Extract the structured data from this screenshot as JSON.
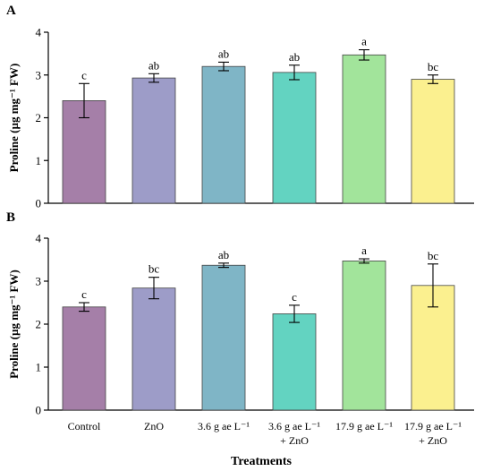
{
  "chart_data": [
    {
      "type": "bar",
      "panel_label": "A",
      "ylabel": "Proline (µg mg⁻¹ FW)",
      "ylim": [
        0,
        4
      ],
      "yticks": [
        "0",
        "1",
        "2",
        "3",
        "4"
      ],
      "categories": [
        "Control",
        "ZnO",
        "3.6 g ae L⁻¹",
        "3.6 g ae L⁻¹ + ZnO",
        "17.9 g ae L⁻¹",
        "17.9 g ae L⁻¹ + ZnO"
      ],
      "values": [
        2.4,
        2.93,
        3.2,
        3.06,
        3.47,
        2.9
      ],
      "errors": [
        0.4,
        0.1,
        0.1,
        0.17,
        0.12,
        0.1
      ],
      "letters": [
        "c",
        "ab",
        "ab",
        "ab",
        "a",
        "bc"
      ],
      "colors": [
        "#a57fa8",
        "#9d9cc8",
        "#7fb5c6",
        "#63d3c1",
        "#a2e49b",
        "#fbf08f"
      ]
    },
    {
      "type": "bar",
      "panel_label": "B",
      "ylabel": "Proline (µg mg⁻¹ FW)",
      "ylim": [
        0,
        4
      ],
      "yticks": [
        "0",
        "1",
        "2",
        "3",
        "4"
      ],
      "categories": [
        "Control",
        "ZnO",
        "3.6 g ae L⁻¹",
        "3.6 g ae L⁻¹ + ZnO",
        "17.9 g ae L⁻¹",
        "17.9 g ae L⁻¹ + ZnO"
      ],
      "values": [
        2.4,
        2.84,
        3.37,
        2.24,
        3.47,
        2.9
      ],
      "errors": [
        0.1,
        0.25,
        0.05,
        0.2,
        0.05,
        0.5
      ],
      "letters": [
        "c",
        "bc",
        "ab",
        "c",
        "a",
        "bc"
      ],
      "colors": [
        "#a57fa8",
        "#9d9cc8",
        "#7fb5c6",
        "#63d3c1",
        "#a2e49b",
        "#fbf08f"
      ]
    }
  ],
  "xaxis": {
    "title": "Treatments",
    "tick_labels": [
      {
        "line1": "Control",
        "line2": ""
      },
      {
        "line1": "ZnO",
        "line2": ""
      },
      {
        "line1": "3.6 g ae L⁻¹",
        "line2": ""
      },
      {
        "line1": "3.6 g ae L⁻¹",
        "line2": "+ ZnO"
      },
      {
        "line1": "17.9 g ae L⁻¹",
        "line2": ""
      },
      {
        "line1": "17.9 g ae L⁻¹",
        "line2": "+ ZnO"
      }
    ]
  }
}
